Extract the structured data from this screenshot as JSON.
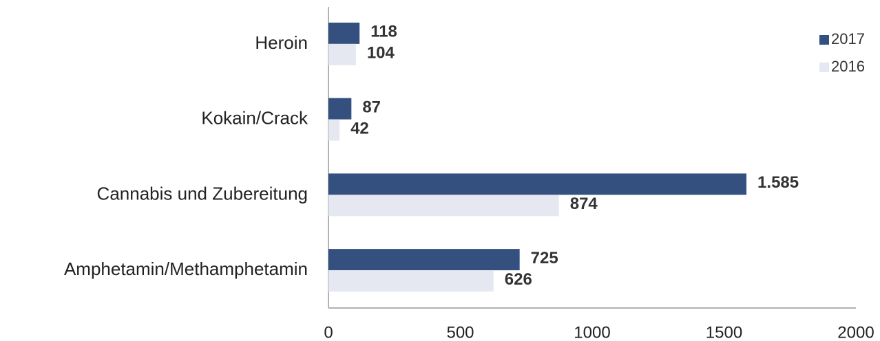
{
  "chart_data": {
    "type": "hbar",
    "categories": [
      "Heroin",
      "Kokain/Crack",
      "Cannabis und Zubereitung",
      "Amphetamin/Methamphetamin"
    ],
    "series": [
      {
        "name": "2017",
        "color": "#34507f",
        "values": [
          118,
          87,
          1585,
          725
        ],
        "value_labels": [
          "118",
          "87",
          "1.585",
          "725"
        ]
      },
      {
        "name": "2016",
        "color": "#e6e8f1",
        "values": [
          104,
          42,
          874,
          626
        ]
      }
    ],
    "xlim": [
      0,
      2000
    ],
    "xticks": [
      0,
      500,
      1000,
      1500,
      2000
    ],
    "grid": false,
    "legend": "top-right"
  }
}
